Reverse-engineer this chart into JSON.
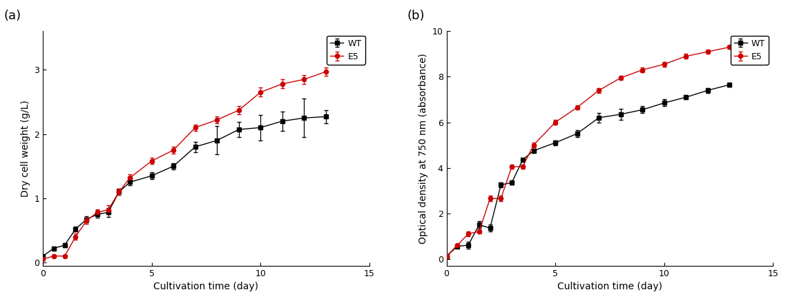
{
  "panel_a": {
    "xlabel": "Cultivation time (day)",
    "ylabel": "Dry cell weight (g/L)",
    "xlim": [
      0,
      15
    ],
    "ylim": [
      -0.05,
      3.6
    ],
    "yticks": [
      0,
      1,
      2,
      3
    ],
    "xticks": [
      0,
      5,
      10,
      15
    ],
    "wt": {
      "x": [
        0,
        0.5,
        1,
        1.5,
        2,
        2.5,
        3,
        3.5,
        4,
        5,
        6,
        7,
        8,
        9,
        10,
        11,
        12,
        13
      ],
      "y": [
        0.1,
        0.22,
        0.27,
        0.52,
        0.67,
        0.75,
        0.78,
        1.1,
        1.25,
        1.35,
        1.5,
        1.8,
        1.9,
        2.07,
        2.1,
        2.2,
        2.25,
        2.27
      ],
      "yerr": [
        0.02,
        0.03,
        0.03,
        0.04,
        0.05,
        0.05,
        0.07,
        0.05,
        0.05,
        0.05,
        0.05,
        0.08,
        0.22,
        0.12,
        0.2,
        0.15,
        0.3,
        0.1
      ],
      "color": "#000000",
      "marker": "s",
      "label": "WT"
    },
    "e5": {
      "x": [
        0,
        0.5,
        1,
        1.5,
        2,
        2.5,
        3,
        3.5,
        4,
        5,
        6,
        7,
        8,
        9,
        10,
        11,
        12,
        13
      ],
      "y": [
        0.05,
        0.1,
        0.1,
        0.4,
        0.65,
        0.78,
        0.82,
        1.1,
        1.32,
        1.58,
        1.75,
        2.1,
        2.22,
        2.37,
        2.65,
        2.78,
        2.85,
        2.97
      ],
      "yerr": [
        0.02,
        0.02,
        0.02,
        0.05,
        0.05,
        0.05,
        0.07,
        0.05,
        0.05,
        0.05,
        0.05,
        0.05,
        0.05,
        0.06,
        0.07,
        0.07,
        0.07,
        0.06
      ],
      "color": "#cc0000",
      "marker": "o",
      "label": "E5"
    }
  },
  "panel_b": {
    "xlabel": "Cultivation time (day)",
    "ylabel": "Optical density at 750 nm (absorbance)",
    "xlim": [
      0,
      15
    ],
    "ylim": [
      -0.3,
      10
    ],
    "yticks": [
      0,
      2,
      4,
      6,
      8,
      10
    ],
    "xticks": [
      0,
      5,
      10,
      15
    ],
    "wt": {
      "x": [
        0,
        0.5,
        1,
        1.5,
        2,
        2.5,
        3,
        3.5,
        4,
        5,
        6,
        7,
        8,
        9,
        10,
        11,
        12,
        13
      ],
      "y": [
        0.12,
        0.55,
        0.6,
        1.5,
        1.35,
        3.25,
        3.35,
        4.35,
        4.75,
        5.1,
        5.5,
        6.2,
        6.35,
        6.55,
        6.85,
        7.1,
        7.4,
        7.65
      ],
      "yerr": [
        0.05,
        0.05,
        0.15,
        0.15,
        0.15,
        0.1,
        0.1,
        0.1,
        0.1,
        0.1,
        0.15,
        0.2,
        0.25,
        0.15,
        0.15,
        0.1,
        0.1,
        0.1
      ],
      "color": "#000000",
      "marker": "s",
      "label": "WT"
    },
    "e5": {
      "x": [
        0,
        0.5,
        1,
        1.5,
        2,
        2.5,
        3,
        3.5,
        4,
        5,
        6,
        7,
        8,
        9,
        10,
        11,
        12,
        13
      ],
      "y": [
        0.12,
        0.6,
        1.1,
        1.2,
        2.65,
        2.65,
        4.05,
        4.05,
        5.0,
        6.0,
        6.65,
        7.4,
        7.95,
        8.3,
        8.55,
        8.9,
        9.1,
        9.3
      ],
      "yerr": [
        0.05,
        0.05,
        0.1,
        0.1,
        0.12,
        0.12,
        0.1,
        0.1,
        0.1,
        0.1,
        0.1,
        0.1,
        0.1,
        0.1,
        0.1,
        0.1,
        0.1,
        0.08
      ],
      "color": "#cc0000",
      "marker": "o",
      "label": "E5"
    }
  },
  "figure_bg": "#ffffff",
  "linewidth": 1.0,
  "markersize": 4.5,
  "capsize": 2.5,
  "elinewidth": 0.9,
  "legend_fontsize": 9,
  "axis_label_fontsize": 10,
  "tick_fontsize": 9,
  "panel_label_fontsize": 13
}
